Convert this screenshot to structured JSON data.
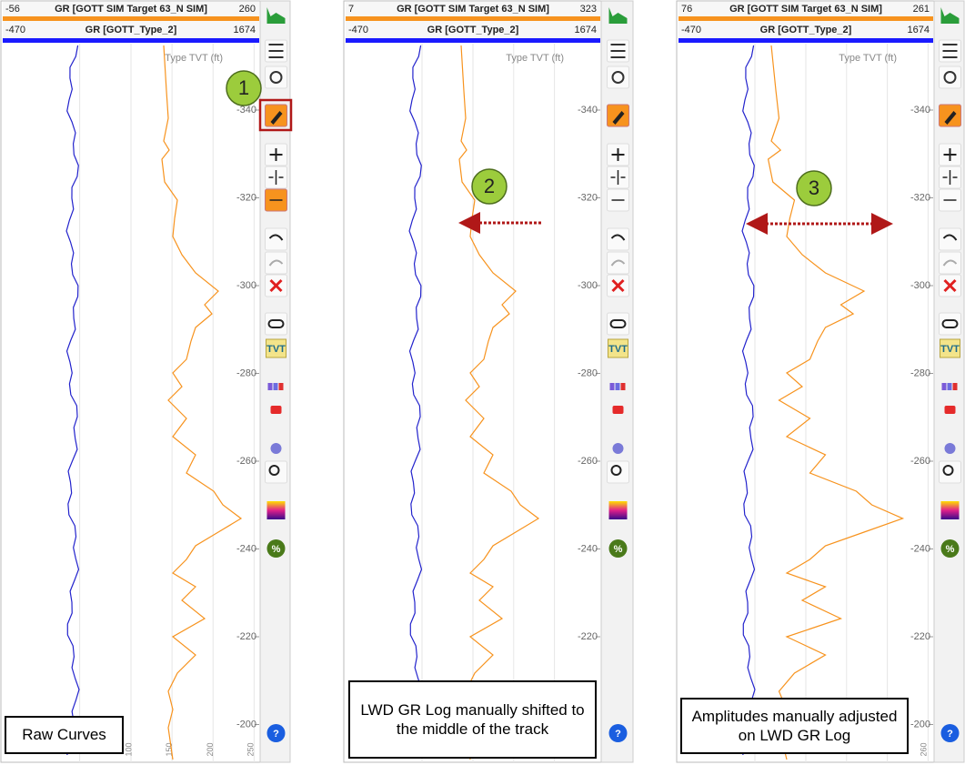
{
  "panels": [
    {
      "header": {
        "curve1": {
          "min": "-56",
          "name": "GR [GOTT SIM Target 63_N SIM]",
          "max": "260"
        },
        "curve2": {
          "min": "-470",
          "name": "GR [GOTT_Type_2]",
          "max": "1674"
        }
      },
      "axis_label": "Type TVT (ft)",
      "yticks": [
        -340,
        -320,
        -300,
        -280,
        -260,
        -240,
        -220,
        -200
      ],
      "xticks": [
        100,
        150,
        200,
        250
      ],
      "badge": "1",
      "caption": "Raw Curves"
    },
    {
      "header": {
        "curve1": {
          "min": "7",
          "name": "GR [GOTT SIM Target 63_N SIM]",
          "max": "323"
        },
        "curve2": {
          "min": "-470",
          "name": "GR [GOTT_Type_2]",
          "max": "1674"
        }
      },
      "axis_label": "Type TVT (ft)",
      "yticks": [
        -340,
        -320,
        -300,
        -280,
        -260,
        -240,
        -220
      ],
      "xticks": [],
      "badge": "2",
      "caption": "LWD GR Log manually shifted to the middle of the track"
    },
    {
      "header": {
        "curve1": {
          "min": "76",
          "name": "GR [GOTT SIM Target 63_N SIM]",
          "max": "261"
        },
        "curve2": {
          "min": "-470",
          "name": "GR [GOTT_Type_2]",
          "max": "1674"
        }
      },
      "axis_label": "Type TVT (ft)",
      "yticks": [
        -340,
        -320,
        -300,
        -280,
        -260,
        -240,
        -220,
        -200
      ],
      "xticks": [
        260
      ],
      "badge": "3",
      "caption": "Amplitudes manually adjusted on LWD GR Log"
    }
  ],
  "toolbar": {
    "tvt": "TVT",
    "percent": "%",
    "help": "?"
  }
}
